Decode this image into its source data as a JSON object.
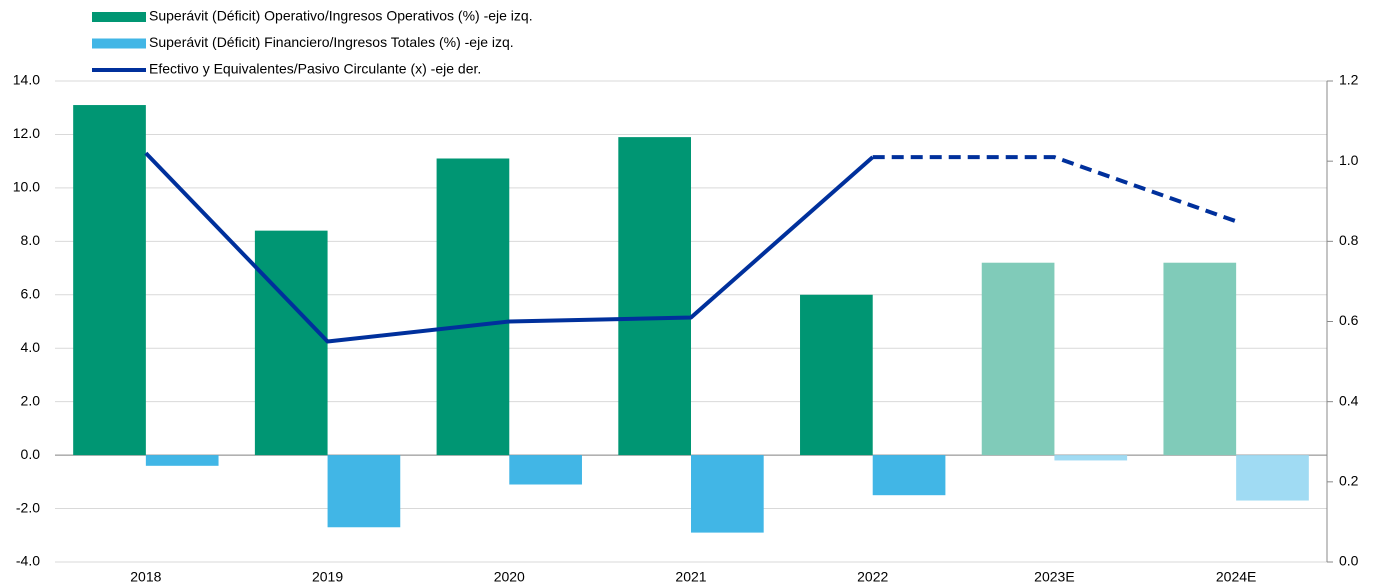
{
  "chart_data": {
    "type": "bar_line",
    "categories": [
      "2018",
      "2019",
      "2020",
      "2021",
      "2022",
      "2023E",
      "2024E"
    ],
    "series": [
      {
        "name": "Superávit (Déficit) Operativo/Ingresos Operativos (%) -eje izq.",
        "type": "bar",
        "color": "#009673",
        "colors": [
          "#009673",
          "#009673",
          "#009673",
          "#009673",
          "#009673",
          "#80cbb9",
          "#80cbb9"
        ],
        "values": [
          13.1,
          8.4,
          11.1,
          11.9,
          6.0,
          7.2,
          7.2
        ]
      },
      {
        "name": "Superávit (Déficit) Financiero/Ingresos Totales (%) -eje izq.",
        "type": "bar",
        "color": "#41b6e6",
        "colors": [
          "#41b6e6",
          "#41b6e6",
          "#41b6e6",
          "#41b6e6",
          "#41b6e6",
          "#a0dbf3",
          "#a0dbf3"
        ],
        "values": [
          -0.4,
          -2.7,
          -1.1,
          -2.9,
          -1.5,
          -0.2,
          -1.7
        ]
      },
      {
        "name": "Efectivo y Equivalentes/Pasivo Circulante (x) -eje der.",
        "type": "line",
        "axis": "y2",
        "color": "#00309c",
        "dashed_from_category": "2022",
        "values": [
          1.02,
          0.55,
          0.6,
          0.61,
          1.01,
          1.01,
          0.85
        ]
      }
    ],
    "ylim": [
      -4,
      14
    ],
    "yticks": [
      {
        "value": -4,
        "label": "-4.0"
      },
      {
        "value": -2,
        "label": "-2.0"
      },
      {
        "value": 0,
        "label": "0.0"
      },
      {
        "value": 2,
        "label": "2.0"
      },
      {
        "value": 4,
        "label": "4.0"
      },
      {
        "value": 6,
        "label": "6.0"
      },
      {
        "value": 8,
        "label": "8.0"
      },
      {
        "value": 10,
        "label": "10.0"
      },
      {
        "value": 12,
        "label": "12.0"
      },
      {
        "value": 14,
        "label": "14.0"
      }
    ],
    "y2lim": [
      0,
      1.2
    ],
    "y2ticks": [
      {
        "value": 0,
        "label": "0.0"
      },
      {
        "value": 0.2,
        "label": "0.2"
      },
      {
        "value": 0.4,
        "label": "0.4"
      },
      {
        "value": 0.6,
        "label": "0.6"
      },
      {
        "value": 0.8,
        "label": "0.8"
      },
      {
        "value": 1,
        "label": "1.0"
      },
      {
        "value": 1.2,
        "label": "1.2"
      }
    ],
    "grid": true,
    "legend": "top-left"
  }
}
